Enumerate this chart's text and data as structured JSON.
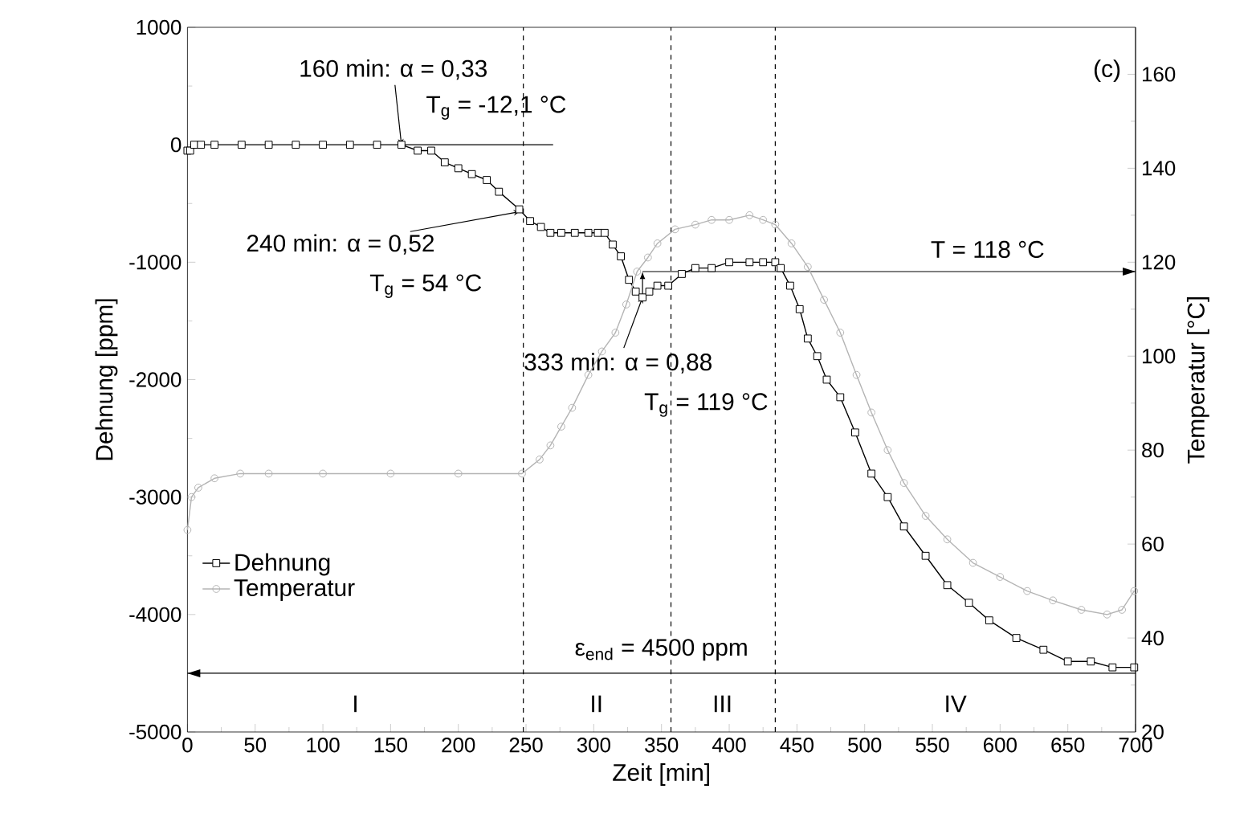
{
  "chart_data": {
    "type": "line",
    "xlabel": "Zeit [min]",
    "ylabel": "Dehnung [ppm]",
    "y2label": "Temperatur [°C]",
    "xlim": [
      0,
      700
    ],
    "xticks": [
      0,
      50,
      100,
      150,
      200,
      250,
      300,
      350,
      400,
      450,
      500,
      550,
      600,
      650,
      700
    ],
    "ylim": [
      -5000,
      1000
    ],
    "yticks": [
      -5000,
      -4000,
      -3000,
      -2000,
      -1000,
      0,
      1000
    ],
    "y2lim": [
      20,
      170
    ],
    "y2ticks": [
      20,
      40,
      60,
      80,
      100,
      120,
      140,
      160
    ],
    "legend": "bottom left",
    "series": [
      {
        "name": "Dehnung",
        "color": "#000000",
        "marker": "square",
        "x": [
          0,
          2,
          5,
          10,
          20,
          40,
          60,
          80,
          100,
          120,
          140,
          158,
          170,
          180,
          190,
          200,
          210,
          221,
          230,
          245,
          253,
          261,
          268,
          276,
          286,
          296,
          303,
          308,
          314,
          320,
          326,
          331,
          336,
          341,
          347,
          355,
          365,
          375,
          387,
          400,
          415,
          425,
          434,
          438,
          445,
          452,
          458,
          465,
          472,
          482,
          493,
          505,
          517,
          529,
          545,
          561,
          577,
          592,
          612,
          632,
          650,
          667,
          683,
          699
        ],
        "values": [
          -50,
          -50,
          0,
          0,
          0,
          0,
          0,
          0,
          0,
          0,
          0,
          0,
          -50,
          -50,
          -150,
          -200,
          -250,
          -300,
          -400,
          -550,
          -650,
          -700,
          -750,
          -750,
          -750,
          -750,
          -750,
          -750,
          -850,
          -950,
          -1150,
          -1250,
          -1300,
          -1250,
          -1200,
          -1200,
          -1100,
          -1050,
          -1050,
          -1000,
          -1000,
          -1000,
          -1000,
          -1050,
          -1200,
          -1400,
          -1650,
          -1800,
          -2000,
          -2150,
          -2450,
          -2800,
          -3000,
          -3250,
          -3500,
          -3750,
          -3900,
          -4050,
          -4200,
          -4300,
          -4400,
          -4400,
          -4450,
          -4450
        ]
      },
      {
        "type": "line",
        "color": "#000000",
        "marker": "none",
        "x": [
          160,
          270
        ],
        "values": [
          0,
          0
        ]
      },
      {
        "name": "Temperatur",
        "color": "#b4b4b4",
        "marker": "circle",
        "axis": "y2",
        "x": [
          0,
          3,
          8,
          20,
          39,
          60,
          100,
          150,
          200,
          247,
          260,
          268,
          276,
          284,
          296,
          306,
          316,
          324,
          332,
          340,
          347,
          360,
          375,
          387,
          400,
          415,
          425,
          434,
          446,
          458,
          470,
          482,
          494,
          505,
          517,
          529,
          545,
          561,
          580,
          600,
          620,
          639,
          660,
          679,
          690,
          699
        ],
        "values": [
          63,
          70,
          72,
          74,
          75,
          75,
          75,
          75,
          75,
          75,
          78,
          81,
          85,
          89,
          96,
          101,
          105,
          111,
          118,
          121,
          124,
          127,
          128,
          129,
          129,
          130,
          129,
          128,
          124,
          119,
          112,
          105,
          96,
          88,
          80,
          73,
          66,
          61,
          56,
          53,
          50,
          48,
          46,
          45,
          46,
          50
        ]
      }
    ],
    "ref_lines": [
      {
        "axis": "x",
        "value": 248,
        "line_style": "dashed"
      },
      {
        "axis": "x",
        "value": 357,
        "line_style": "dashed"
      },
      {
        "axis": "x",
        "value": 434,
        "line_style": "dashed"
      },
      {
        "axis": "y",
        "value": -4500
      },
      {
        "axis": "y2",
        "value": 118,
        "label": "T = 118 °C"
      }
    ],
    "annotations": [
      {
        "text": "160 min: α = 0,33",
        "x": 158,
        "y": 0
      },
      "T$_{g}$ = -12,1 °C",
      {
        "text": "240 min: α = 0,52",
        "x": 245,
        "y": -570
      },
      "T$_{g}$ = 54 °C",
      {
        "text": "333 min: α = 0,88",
        "x": 336,
        "y": -1300
      },
      "T$_{g}$ = 119 °C",
      "(c)",
      "ε$_{end}$ = 4500 ppm",
      "I",
      "II",
      "III",
      "IV"
    ]
  }
}
